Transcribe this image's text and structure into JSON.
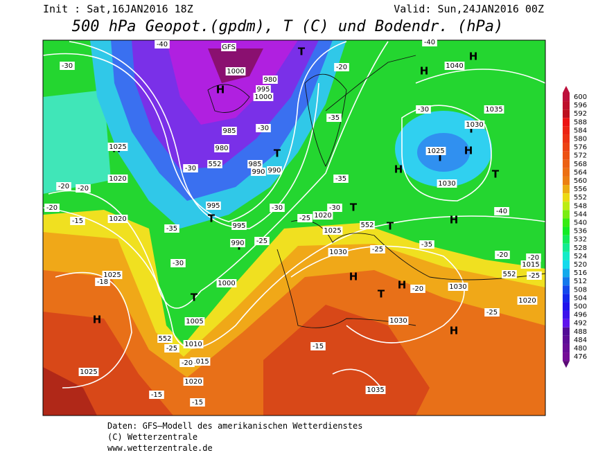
{
  "header": {
    "init": "Init : Sat,16JAN2016 18Z",
    "valid": "Valid: Sun,24JAN2016 00Z",
    "title": "500 hPa Geopot.(gpdm), T (C) und Bodendr. (hPa)"
  },
  "colorbar": {
    "labels": [
      600,
      596,
      592,
      588,
      584,
      580,
      576,
      572,
      568,
      564,
      560,
      556,
      552,
      548,
      544,
      540,
      536,
      532,
      528,
      524,
      520,
      516,
      512,
      508,
      504,
      500,
      496,
      492,
      488,
      484,
      480,
      476
    ]
  },
  "map": {
    "labels": [
      "H",
      "H",
      "H",
      "H",
      "H",
      "H",
      "H",
      "H",
      "H",
      "H",
      "H",
      "T",
      "T",
      "T",
      "T",
      "T",
      "T",
      "T",
      "T",
      "T",
      "T",
      "T",
      "1025",
      "1020",
      "1020",
      "1025",
      "1025",
      "1005",
      "1010",
      "1015",
      "1020",
      "1000",
      "995",
      "990",
      "985",
      "980",
      "990",
      "995",
      "1000",
      "1000",
      "995",
      "980",
      "985",
      "990",
      "1020",
      "1025",
      "1030",
      "1030",
      "1030",
      "1025",
      "1030",
      "1035",
      "1040",
      "1030",
      "1015",
      "1020",
      "1035",
      "-30",
      "-20",
      "-20",
      "-15",
      "-18",
      "-25",
      "-20",
      "-15",
      "-15",
      "-15",
      "-35",
      "-40",
      "-35",
      "-30",
      "-35",
      "-25",
      "-30",
      "-25",
      "-20",
      "-25",
      "-30",
      "-40",
      "-40",
      "-35",
      "-25",
      "-20",
      "-20",
      "-25",
      "-20",
      "-20",
      "552",
      "552",
      "552",
      "552",
      "GFS",
      "-30",
      "-30",
      "-30"
    ]
  },
  "footer": {
    "source": "Daten: GFS–Modell des amerikanischen Wetterdienstes",
    "copyright": "(C) Wetterzentrale",
    "url": "www.wetterzentrale.de"
  }
}
